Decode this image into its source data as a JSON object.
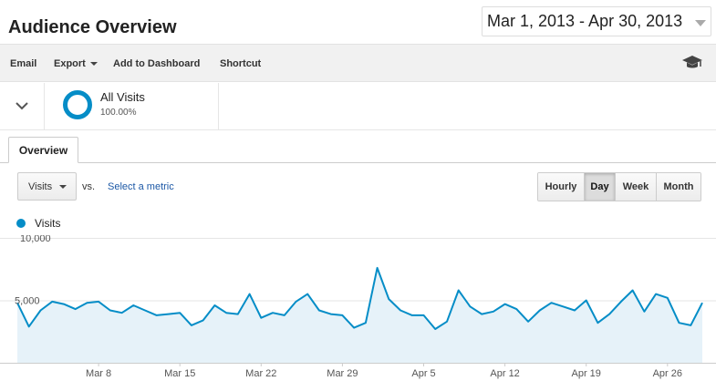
{
  "header": {
    "title": "Audience Overview",
    "date_range": "Mar 1, 2013 - Apr 30, 2013"
  },
  "toolbar": {
    "email": "Email",
    "export": "Export",
    "add_to_dashboard": "Add to Dashboard",
    "shortcut": "Shortcut",
    "help_icon": "graduation-cap-icon"
  },
  "segment": {
    "name": "All Visits",
    "percent": "100.00%"
  },
  "tabs": [
    {
      "label": "Overview"
    }
  ],
  "controls": {
    "metric": "Visits",
    "vs": "vs.",
    "select_metric": "Select a metric",
    "granularity": [
      "Hourly",
      "Day",
      "Week",
      "Month"
    ],
    "selected_granularity": "Day"
  },
  "colors": {
    "series": "#058dc7",
    "fill": "#e6f2f9"
  },
  "chart_data": {
    "type": "area",
    "legend": [
      "Visits"
    ],
    "x_ticks": [
      "Mar 8",
      "Mar 15",
      "Mar 22",
      "Mar 29",
      "Apr 5",
      "Apr 12",
      "Apr 19",
      "Apr 26"
    ],
    "y_ticks": [
      "10,000",
      "5,000"
    ],
    "ylim": [
      0,
      10000
    ],
    "grid": true,
    "series": [
      {
        "name": "Visits",
        "values": [
          4800,
          2900,
          4200,
          4900,
          4700,
          4300,
          4800,
          4900,
          4200,
          4000,
          4600,
          4200,
          3800,
          3900,
          4000,
          3000,
          3400,
          4600,
          4000,
          3900,
          5500,
          3600,
          4000,
          3800,
          4900,
          5500,
          4200,
          3900,
          3800,
          2800,
          3200,
          7600,
          5100,
          4200,
          3800,
          3800,
          2700,
          3300,
          5800,
          4500,
          3900,
          4100,
          4700,
          4300,
          3300,
          4200,
          4800,
          4500,
          4200,
          5000,
          3200,
          3900,
          4900,
          5800,
          4100,
          5500,
          5200,
          3200,
          3000,
          4800
        ]
      }
    ]
  }
}
